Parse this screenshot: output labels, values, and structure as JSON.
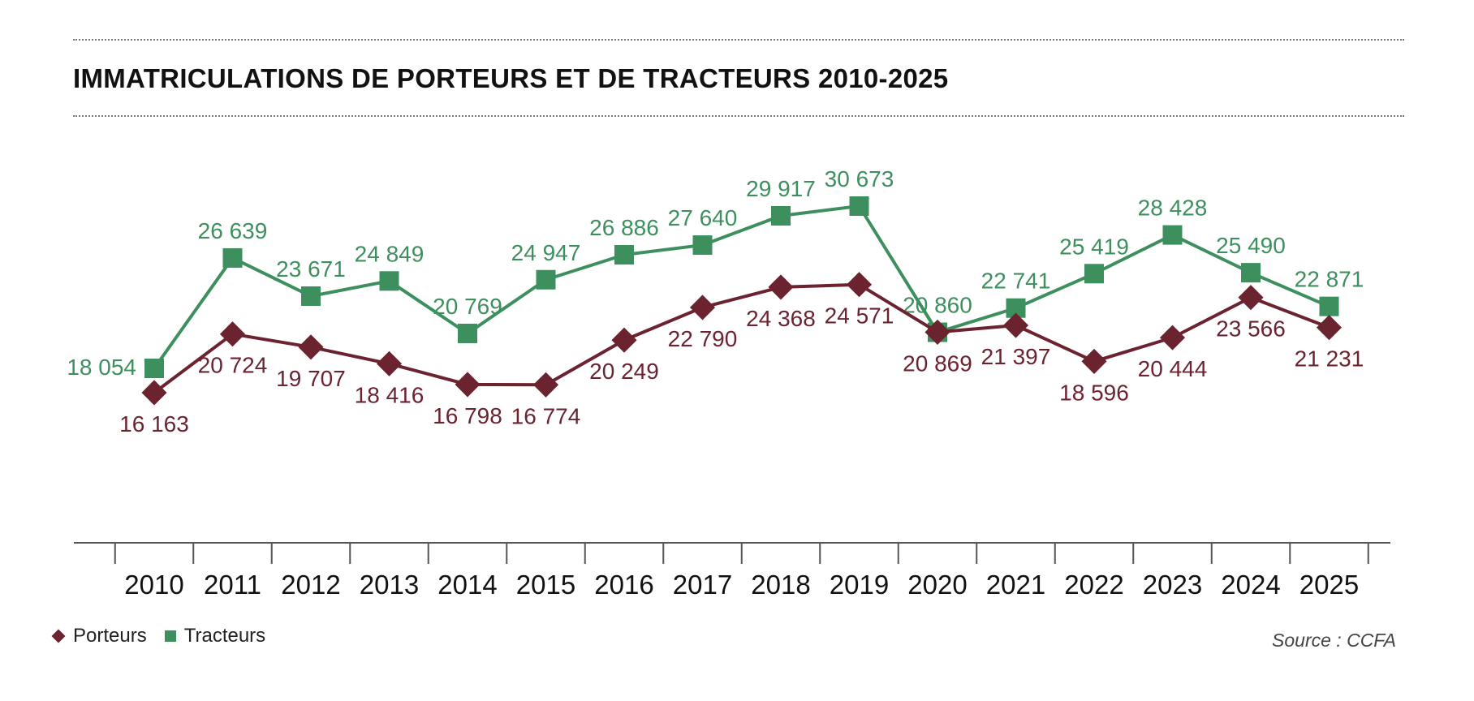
{
  "chart_data": {
    "type": "line",
    "title": "IMMATRICULATIONS DE PORTEURS ET DE TRACTEURS 2010-2025",
    "x": [
      "2010",
      "2011",
      "2012",
      "2013",
      "2014",
      "2015",
      "2016",
      "2017",
      "2018",
      "2019",
      "2020",
      "2021",
      "2022",
      "2023",
      "2024",
      "2025"
    ],
    "series": [
      {
        "name": "Porteurs",
        "color": "#6b2330",
        "marker": "diamond",
        "values": [
          16163,
          20724,
          19707,
          18416,
          16798,
          16774,
          20249,
          22790,
          24368,
          24571,
          20869,
          21397,
          18596,
          20444,
          23566,
          21231
        ],
        "labels": [
          "16 163",
          "20 724",
          "19 707",
          "18 416",
          "16 798",
          "16 774",
          "20 249",
          "22 790",
          "24 368",
          "24 571",
          "20 869",
          "21 397",
          "18 596",
          "20 444",
          "23 566",
          "21 231"
        ]
      },
      {
        "name": "Tracteurs",
        "color": "#3e8f5e",
        "marker": "square",
        "values": [
          18054,
          26639,
          23671,
          24849,
          20769,
          24947,
          26886,
          27640,
          29917,
          30673,
          20860,
          22741,
          25419,
          28428,
          25490,
          22871
        ],
        "labels": [
          "18 054",
          "26 639",
          "23 671",
          "24 849",
          "20 769",
          "24 947",
          "26 886",
          "27 640",
          "29 917",
          "30 673",
          "20 860",
          "22 741",
          "25 419",
          "28 428",
          "25 490",
          "22 871"
        ]
      }
    ],
    "xlabel": "",
    "ylabel": "",
    "grid": false,
    "legend": "bottom-left",
    "source": "Source : CCFA"
  }
}
